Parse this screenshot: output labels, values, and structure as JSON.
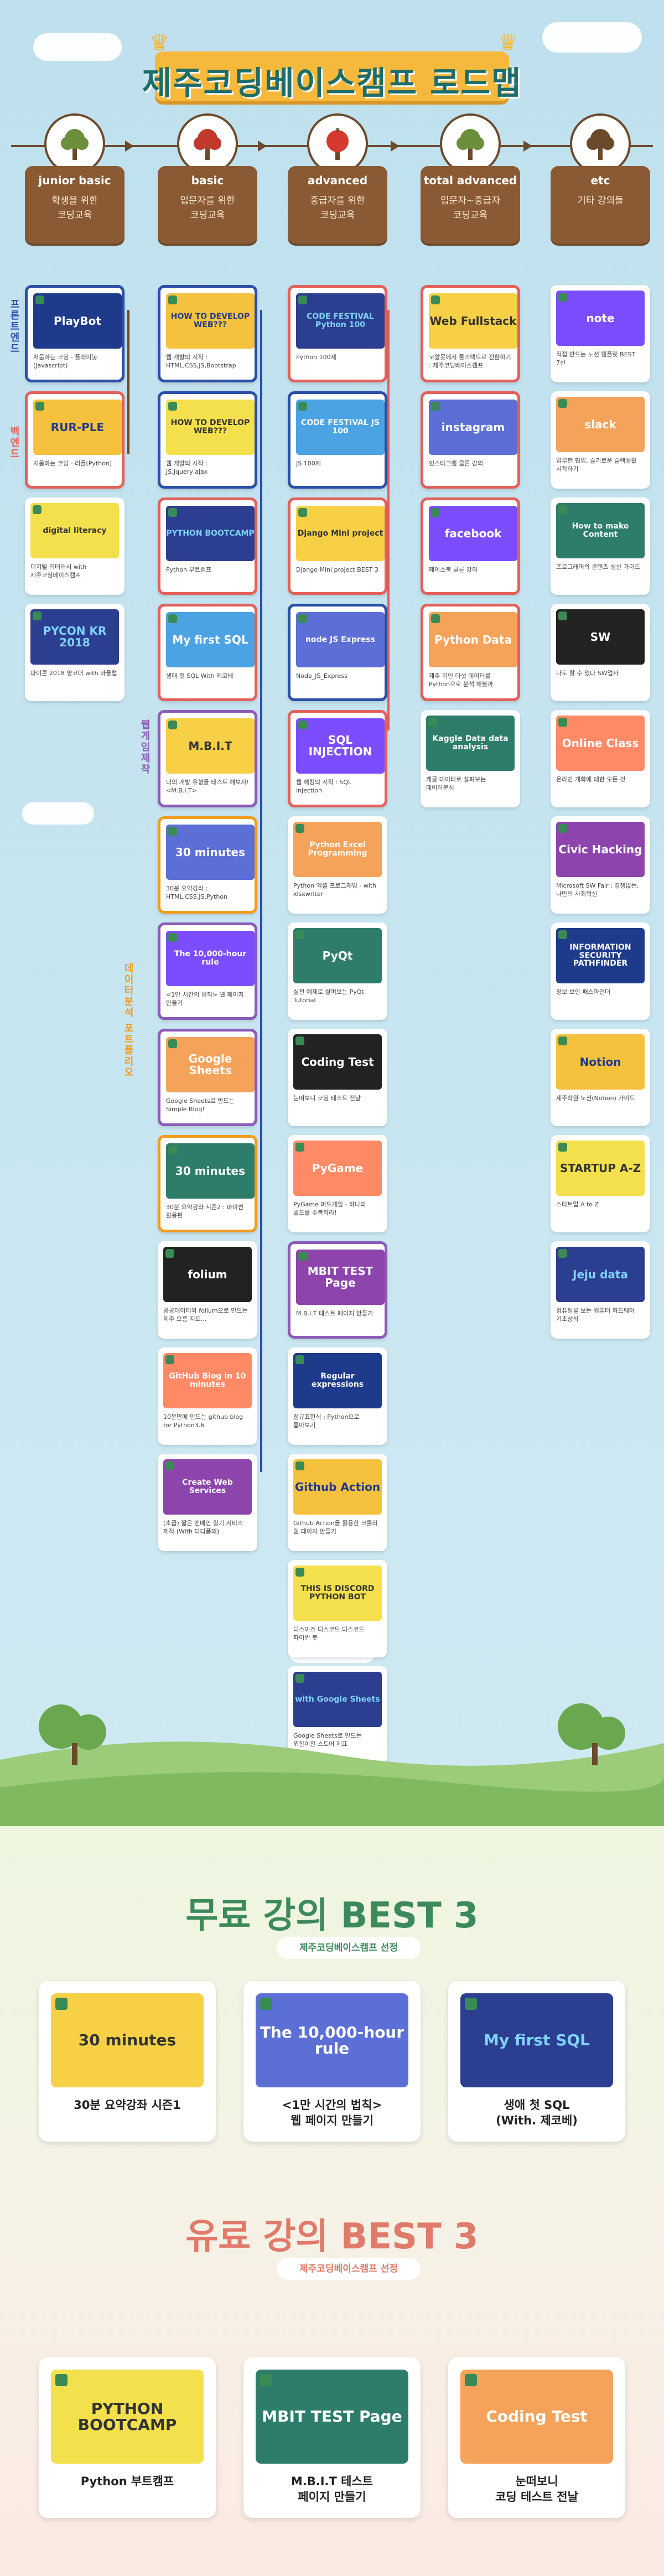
{
  "title": "제주코딩베이스캠프 로드맵",
  "side_labels": {
    "frontend": "프론트엔드",
    "backend": "백엔드",
    "web_game": "웹게임제작",
    "data": "데이터분석 포트폴리오"
  },
  "columns": [
    {
      "name": "junior basic",
      "desc1": "학생을 위한",
      "desc2": "코딩교육"
    },
    {
      "name": "basic",
      "desc1": "입문자를 위한",
      "desc2": "코딩교육"
    },
    {
      "name": "advanced",
      "desc1": "중급자를 위한",
      "desc2": "코딩교육"
    },
    {
      "name": "total advanced",
      "desc1": "입문자~중급자",
      "desc2": "코딩교육"
    },
    {
      "name": "etc",
      "desc1": "기타 강의들",
      "desc2": ""
    }
  ],
  "junior": [
    {
      "thumb": "PlayBot",
      "cap": "처음하는 코딩 - 플레이봇(Javascript)"
    },
    {
      "thumb": "RUR-PLE",
      "cap": "처음하는 코딩 - 러플(Python)"
    },
    {
      "thumb": "digital literacy",
      "cap": "디지털 리터러시 with 제주코딩베이스캠프"
    },
    {
      "thumb": "PYCON KR 2018",
      "cap": "파이콘 2018 영코더 with 바울랩"
    }
  ],
  "basic": [
    {
      "thumb": "HOW TO DEVELOP WEB???",
      "cap": "웹 개발의 시작 : HTML,CSS,JS,Bootstrap"
    },
    {
      "thumb": "HOW TO DEVELOP WEB???",
      "cap": "웹 개발의 시작 : JS,Jquery,ajax"
    },
    {
      "thumb": "PYTHON BOOTCAMP",
      "cap": "Python 부트캠프"
    },
    {
      "thumb": "My first SQL",
      "cap": "생애 첫 SQL With 제코베"
    },
    {
      "thumb": "M.B.I.T",
      "cap": "너의 개발 유형을 테스트 해보자! <M.B.I.T>"
    },
    {
      "thumb": "30 minutes",
      "cap": "30분 요약강좌 : HTML,CSS,JS,Python"
    },
    {
      "thumb": "The 10,000-hour rule",
      "cap": "<1만 시간의 법칙> 웹 페이지 만들기"
    },
    {
      "thumb": "Google Sheets",
      "cap": "Google Sheets로 만드는 Simple Blog!"
    },
    {
      "thumb": "30 minutes",
      "cap": "30분 요약강좌 시즌2 : 파이썬 활용편"
    },
    {
      "thumb": "folium",
      "cap": "공공데이터와 folium으로 만드는 제주 오름 지도..."
    },
    {
      "thumb": "GitHub Blog in 10 minutes",
      "cap": "10분만에 만드는 github blog for Python3.6"
    },
    {
      "thumb": "Create Web Services",
      "cap": "(초급) 짧은 엔베인 링기 서비스 제작 (With 다다폼의)"
    }
  ],
  "advanced": [
    {
      "thumb": "CODE FESTIVAL Python 100",
      "cap": "Python 100제"
    },
    {
      "thumb": "CODE FESTIVAL JS 100",
      "cap": "JS 100제"
    },
    {
      "thumb": "Django Mini project",
      "cap": "Django Mini project BEST 3"
    },
    {
      "thumb": "node JS Express",
      "cap": "Node_JS_Express"
    },
    {
      "thumb": "SQL INJECTION",
      "cap": "웹 해킹의 시작 : SQL injection"
    },
    {
      "thumb": "Python Excel Programming",
      "cap": "Python 엑셀 프로그래밍 - with xlsxwriter"
    },
    {
      "thumb": "PyQt",
      "cap": "실전 예제로 살펴보는 PyQt Tutorial"
    },
    {
      "thumb": "Coding Test",
      "cap": "눈떠보니 코딩 테스트 전날"
    },
    {
      "thumb": "PyGame",
      "cap": "PyGame 머드게임 - 하나의 월드를 수복하라!"
    },
    {
      "thumb": "MBIT TEST Page",
      "cap": "M.B.I.T 테스트 페이지 만들기"
    },
    {
      "thumb": "Regular expressions",
      "cap": "정규표현식 : Python으로 톺아보기"
    },
    {
      "thumb": "Github Action",
      "cap": "Github Action을 활용한 크롤러 웹 페이지 만들기"
    },
    {
      "thumb": "THIS IS DISCORD PYTHON BOT",
      "cap": "디스이즈 디스코드 디스코드 파이썬 봇"
    },
    {
      "thumb": "with Google Sheets",
      "cap": "Google Sheets로 만드는 뷔잔이잔 스토어 제표"
    }
  ],
  "total": [
    {
      "thumb": "Web Fullstack",
      "cap": "코알못에서 풀스택으로 전환하기 : 제주코딩베이스캠프"
    },
    {
      "thumb": "instagram",
      "cap": "인스타그램 클론 강의"
    },
    {
      "thumb": "facebook",
      "cap": "페이스북 클론 강의"
    },
    {
      "thumb": "Python Data",
      "cap": "제주 위인 다섯 데이터를 Python으로 분석 해볼까"
    },
    {
      "thumb": "Kaggle Data data analysis",
      "cap": "캐글 데이터로 살펴보는 데이터분석"
    }
  ],
  "etc": [
    {
      "thumb": "note",
      "cap": "직접 만드는 노션 템플릿 BEST 7선"
    },
    {
      "thumb": "slack",
      "cap": "업무한 협업, 슬기로운 슬랙생활 시작하기"
    },
    {
      "thumb": "How to make Content",
      "cap": "프로그래머의 콘텐츠 생산 가이드"
    },
    {
      "thumb": "SW",
      "cap": "나도 할 수 있다 SW업사"
    },
    {
      "thumb": "Online Class",
      "cap": "온라인 개학에 대한 모든 것"
    },
    {
      "thumb": "Civic Hacking",
      "cap": "Microsoft SW Fair : 경쟁없는, 나만의 사회혁신"
    },
    {
      "thumb": "INFORMATION SECURITY PATHFINDER",
      "cap": "정보 보안 패스파인더"
    },
    {
      "thumb": "Notion",
      "cap": "제주학원 노션(Notion) 가이드"
    },
    {
      "thumb": "STARTUP A-Z",
      "cap": "스타트업 A to Z"
    },
    {
      "thumb": "Jeju data",
      "cap": "컴퓨팅을 보는 컴퓨터 하드웨어 기초상식"
    }
  ],
  "free_best": {
    "title": "무료 강의 BEST 3",
    "sub": "제주코딩베이스캠프 선정",
    "items": [
      {
        "thumb": "30 minutes",
        "cap1": "30분 요약강좌 시즌1",
        "cap2": ""
      },
      {
        "thumb": "The 10,000-hour rule",
        "cap1": "<1만 시간의 법칙>",
        "cap2": "웹 페이지 만들기"
      },
      {
        "thumb": "My first SQL",
        "cap1": "생애 첫 SQL",
        "cap2": "(With. 제코베)"
      }
    ]
  },
  "paid_best": {
    "title": "유료 강의 BEST 3",
    "sub": "제주코딩베이스캠프 선정",
    "items": [
      {
        "thumb": "PYTHON BOOTCAMP",
        "cap1": "Python 부트캠프",
        "cap2": ""
      },
      {
        "thumb": "MBIT TEST Page",
        "cap1": "M.B.I.T 테스트",
        "cap2": "페이지 만들기"
      },
      {
        "thumb": "Coding Test",
        "cap1": "눈떠보니",
        "cap2": "코딩 테스트 전날"
      }
    ]
  },
  "colors": {
    "brown": "#8a5a34",
    "blue": "#2b4fa8",
    "red": "#e4605a",
    "purple": "#8c5ab8",
    "orange": "#f29b1e",
    "teal": "#1d6d6a",
    "green": "#3c8a5a",
    "coral": "#e07a6a"
  }
}
